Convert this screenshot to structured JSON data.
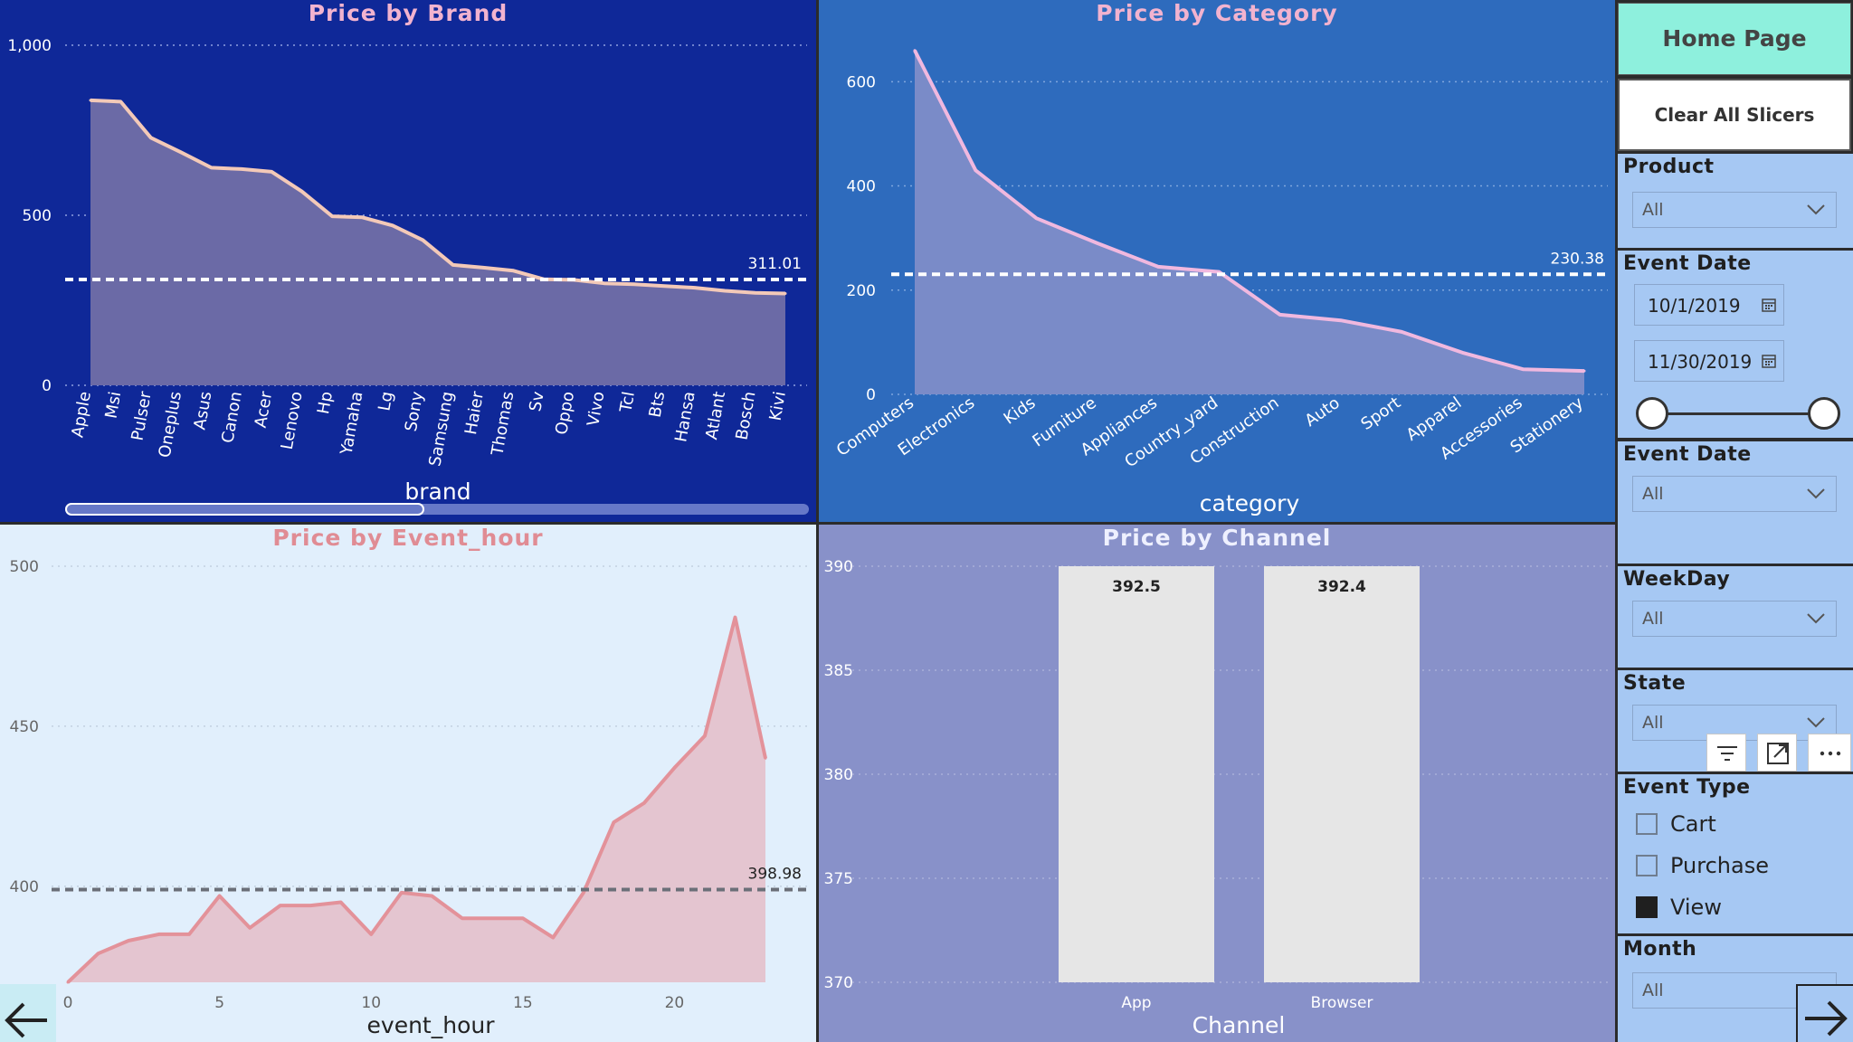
{
  "charts": {
    "brand": {
      "title": "Price by Brand",
      "chart_data": {
        "type": "area",
        "title": "Price by Brand",
        "xlabel": "brand",
        "ylabel": "",
        "ylim": [
          0,
          1000
        ],
        "yticks": [
          0,
          500,
          1000
        ],
        "ytick_labels": [
          "0",
          "500",
          "1,000"
        ],
        "categories": [
          "Apple",
          "Msi",
          "Pulser",
          "Oneplus",
          "Asus",
          "Canon",
          "Acer",
          "Lenovo",
          "Hp",
          "Yamaha",
          "Lg",
          "Sony",
          "Samsung",
          "Haier",
          "Thomas",
          "Sv",
          "Oppo",
          "Vivo",
          "Tcl",
          "Bts",
          "Hansa",
          "Atlant",
          "Bosch",
          "Kivi"
        ],
        "values": [
          838,
          834,
          728,
          685,
          640,
          636,
          628,
          570,
          497,
          494,
          470,
          427,
          354,
          346,
          337,
          312,
          310,
          300,
          297,
          292,
          287,
          278,
          272,
          270
        ],
        "average_line": 311.01,
        "average_label": "311.01",
        "grid": true
      }
    },
    "category": {
      "title": "Price by Category",
      "chart_data": {
        "type": "area",
        "title": "Price by Category",
        "xlabel": "category",
        "ylabel": "",
        "ylim": [
          0,
          670
        ],
        "yticks": [
          0,
          200,
          400,
          600
        ],
        "ytick_labels": [
          "0",
          "200",
          "400",
          "600"
        ],
        "categories": [
          "Computers",
          "Electronics",
          "Kids",
          "Furniture",
          "Appliances",
          "Country_yard",
          "Construction",
          "Auto",
          "Sport",
          "Apparel",
          "Accessories",
          "Stationery"
        ],
        "values": [
          660,
          430,
          338,
          290,
          245,
          235,
          153,
          142,
          120,
          80,
          48,
          45
        ],
        "average_line": 230.38,
        "average_label": "230.38",
        "grid": true
      }
    },
    "hour": {
      "title": "Price by Event_hour",
      "chart_data": {
        "type": "area",
        "title": "Price by Event_hour",
        "xlabel": "event_hour",
        "ylabel": "",
        "ylim": [
          370,
          500
        ],
        "yticks": [
          400,
          450,
          500
        ],
        "ytick_labels": [
          "400",
          "450",
          "500"
        ],
        "xlim": [
          0,
          23
        ],
        "xticks": [
          0,
          5,
          10,
          15,
          20
        ],
        "xtick_labels": [
          "0",
          "5",
          "10",
          "15",
          "20"
        ],
        "x": [
          0,
          1,
          2,
          3,
          4,
          5,
          6,
          7,
          8,
          9,
          10,
          11,
          12,
          13,
          14,
          15,
          16,
          17,
          18,
          19,
          20,
          21,
          22,
          23
        ],
        "values": [
          370,
          379,
          383,
          385,
          385,
          397,
          387,
          394,
          394,
          395,
          385,
          398,
          397,
          390,
          390,
          390,
          384,
          398,
          420,
          426,
          437,
          447,
          484,
          440
        ],
        "average_line": 398.98,
        "average_label": "398.98",
        "grid": true
      }
    },
    "channel": {
      "title": "Price by Channel",
      "chart_data": {
        "type": "bar",
        "title": "Price by Channel",
        "xlabel": "Channel",
        "ylabel": "",
        "ylim": [
          370,
          390
        ],
        "yticks": [
          370,
          375,
          380,
          385,
          390
        ],
        "ytick_labels": [
          "370",
          "375",
          "380",
          "385",
          "390"
        ],
        "categories": [
          "App",
          "Browser"
        ],
        "values": [
          392.5,
          392.4
        ],
        "value_labels": [
          "392.5",
          "392.4"
        ],
        "grid": true
      }
    }
  },
  "sidebar": {
    "home_button": "Home Page",
    "clear_button": "Clear All Slicers",
    "product": {
      "title": "Product",
      "value": "All"
    },
    "event_date_range": {
      "title": "Event Date",
      "start": "10/1/2019",
      "end": "11/30/2019"
    },
    "event_date": {
      "title": "Event Date",
      "value": "All"
    },
    "weekday": {
      "title": "WeekDay",
      "value": "All"
    },
    "state": {
      "title": "State",
      "value": "All"
    },
    "event_type": {
      "title": "Event Type",
      "options": [
        {
          "label": "Cart",
          "checked": false
        },
        {
          "label": "Purchase",
          "checked": false
        },
        {
          "label": "View",
          "checked": true
        }
      ]
    },
    "month": {
      "title": "Month",
      "value": "All"
    }
  },
  "colors": {
    "brand_bg": "#0f2898",
    "category_bg": "#2e6bbd",
    "hour_bg": "#e1effc",
    "channel_bg": "#8891c9",
    "sidebar_bg": "#a6c8f3",
    "home_button_bg": "#8ef0dd",
    "title_pink": "#f2b3cf",
    "hour_title": "#e08c94"
  },
  "icons": {
    "nav_prev": "arrow-left-icon",
    "nav_next": "arrow-right-icon",
    "filter": "filter-icon",
    "focus": "focus-mode-icon",
    "more": "more-options-icon"
  }
}
